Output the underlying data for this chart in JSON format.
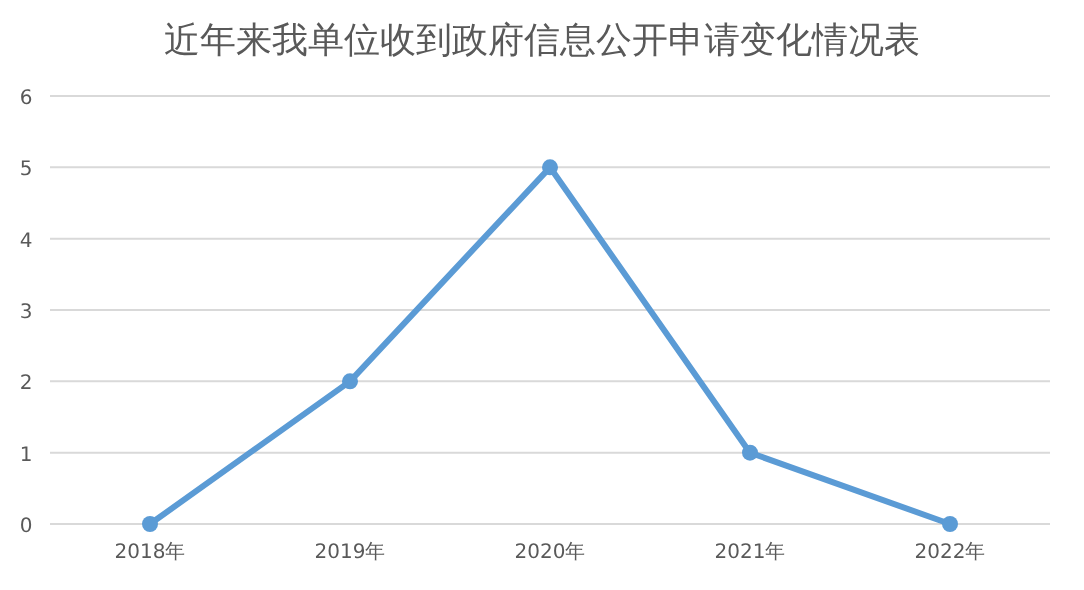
{
  "chart_data": {
    "type": "line",
    "title": "近年来我单位收到政府信息公开申请变化情况表",
    "categories": [
      "2018年",
      "2019年",
      "2020年",
      "2021年",
      "2022年"
    ],
    "series": [
      {
        "color": "#5b9bd5",
        "values": [
          0,
          2,
          5,
          1,
          0
        ]
      }
    ],
    "ylim": [
      0,
      6
    ],
    "yticks": [
      0,
      1,
      2,
      3,
      4,
      5,
      6
    ],
    "grid": "y",
    "marker": "circle",
    "line_style": "solid"
  }
}
